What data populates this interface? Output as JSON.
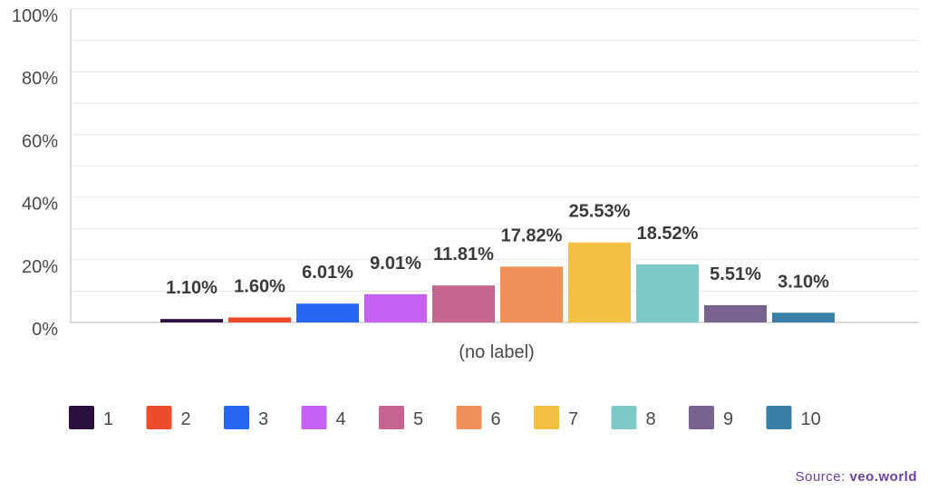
{
  "chart_data": {
    "type": "bar",
    "categories": [
      "(no label)"
    ],
    "series": [
      {
        "name": "1",
        "values": [
          1.1
        ],
        "color": "#2a0f3f",
        "label": "1.10%"
      },
      {
        "name": "2",
        "values": [
          1.6
        ],
        "color": "#ee4a2c",
        "label": "1.60%"
      },
      {
        "name": "3",
        "values": [
          6.01
        ],
        "color": "#2866f2",
        "label": "6.01%"
      },
      {
        "name": "4",
        "values": [
          9.01
        ],
        "color": "#c461f2",
        "label": "9.01%"
      },
      {
        "name": "5",
        "values": [
          11.81
        ],
        "color": "#c4668f",
        "label": "11.81%"
      },
      {
        "name": "6",
        "values": [
          17.82
        ],
        "color": "#f0915c",
        "label": "17.82%"
      },
      {
        "name": "7",
        "values": [
          25.53
        ],
        "color": "#f2c042",
        "label": "25.53%"
      },
      {
        "name": "8",
        "values": [
          18.52
        ],
        "color": "#7fc8ca",
        "label": "18.52%"
      },
      {
        "name": "9",
        "values": [
          5.51
        ],
        "color": "#7a6290",
        "label": "5.51%"
      },
      {
        "name": "10",
        "values": [
          3.1
        ],
        "color": "#3a7fa6",
        "label": "3.10%"
      }
    ],
    "yticks": [
      "0%",
      "20%",
      "40%",
      "60%",
      "80%",
      "100%"
    ],
    "ylim": [
      0,
      100
    ],
    "grid": true,
    "legend_position": "bottom"
  },
  "source": {
    "prefix": "Source:",
    "site": "veo.world"
  }
}
